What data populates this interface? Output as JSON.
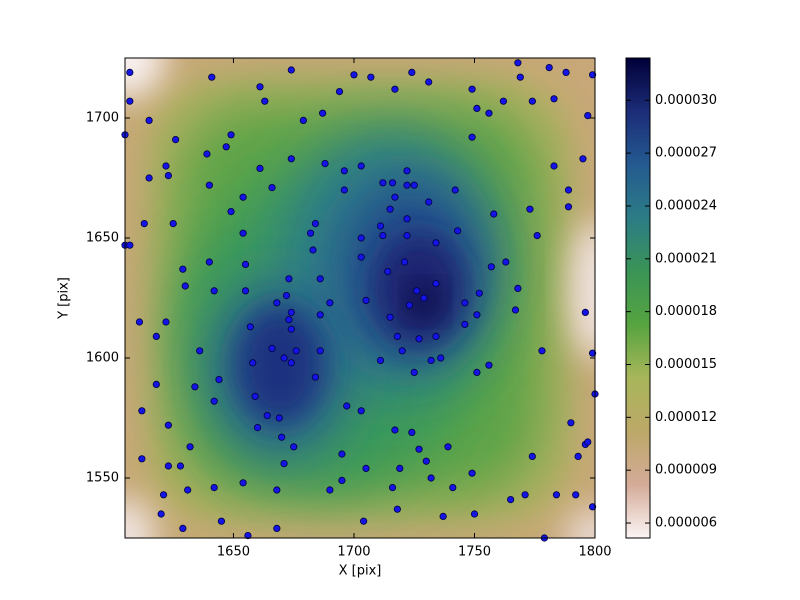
{
  "chart_data": {
    "type": "scatter",
    "xlabel": "X [pix]",
    "ylabel": "Y [pix]",
    "xlim": [
      1605,
      1800
    ],
    "ylim": [
      1525,
      1725
    ],
    "xticks": [
      1650,
      1700,
      1750,
      1800
    ],
    "yticks": [
      1550,
      1600,
      1650,
      1700
    ],
    "color": "#1414e6",
    "x": [
      1607,
      1607,
      1615,
      1626,
      1641,
      1661,
      1663,
      1674,
      1679,
      1687,
      1700,
      1694,
      1707,
      1717,
      1724,
      1731,
      1749,
      1751,
      1756,
      1762,
      1768,
      1769,
      1774,
      1783,
      1781,
      1788,
      1797,
      1799,
      1795,
      1789,
      1789,
      1783,
      1773,
      1776,
      1763,
      1768,
      1767,
      1757,
      1758,
      1749,
      1742,
      1743,
      1734,
      1731,
      1725,
      1722,
      1716,
      1712,
      1717,
      1722,
      1715,
      1722,
      1722,
      1712,
      1703,
      1703,
      1714,
      1721,
      1726,
      1734,
      1729,
      1723,
      1715,
      1718,
      1720,
      1727,
      1734,
      1736,
      1732,
      1725,
      1711,
      1705,
      1696,
      1696,
      1703,
      1711,
      1684,
      1682,
      1688,
      1674,
      1661,
      1654,
      1654,
      1649,
      1640,
      1639,
      1647,
      1649,
      1666,
      1683,
      1686,
      1690,
      1686,
      1686,
      1684,
      1673,
      1674,
      1673,
      1672,
      1668,
      1674,
      1676,
      1674,
      1671,
      1666,
      1657,
      1658,
      1659,
      1660,
      1669,
      1664,
      1670,
      1675,
      1671,
      1668,
      1654,
      1656,
      1645,
      1642,
      1631,
      1629,
      1621,
      1623,
      1628,
      1632,
      1623,
      1634,
      1642,
      1636,
      1644,
      1642,
      1640,
      1655,
      1655,
      1629,
      1630,
      1622,
      1618,
      1611,
      1618,
      1612,
      1612,
      1620,
      1668,
      1690,
      1695,
      1695,
      1704,
      1705,
      1703,
      1697,
      1717,
      1719,
      1718,
      1716,
      1732,
      1739,
      1741,
      1749,
      1750,
      1737,
      1730,
      1727,
      1724,
      1765,
      1771,
      1774,
      1784,
      1792,
      1796,
      1790,
      1793,
      1797,
      1799,
      1800,
      1779,
      1778,
      1756,
      1751,
      1751,
      1746,
      1746,
      1752,
      1799,
      1796,
      1605,
      1605,
      1607,
      1613,
      1625,
      1623,
      1622,
      1615
    ],
    "values": [
      1719,
      1707,
      1699,
      1691,
      1717,
      1713,
      1707,
      1720,
      1699,
      1702,
      1718,
      1711,
      1717,
      1712,
      1719,
      1715,
      1712,
      1704,
      1702,
      1707,
      1723,
      1717,
      1707,
      1708,
      1721,
      1719,
      1701,
      1718,
      1683,
      1663,
      1670,
      1680,
      1662,
      1651,
      1640,
      1629,
      1620,
      1638,
      1660,
      1692,
      1670,
      1653,
      1648,
      1665,
      1672,
      1672,
      1673,
      1673,
      1667,
      1678,
      1662,
      1658,
      1651,
      1651,
      1650,
      1642,
      1636,
      1640,
      1628,
      1631,
      1625,
      1622,
      1617,
      1609,
      1603,
      1608,
      1609,
      1600,
      1599,
      1594,
      1599,
      1624,
      1670,
      1678,
      1680,
      1655,
      1656,
      1652,
      1681,
      1683,
      1679,
      1667,
      1652,
      1661,
      1672,
      1685,
      1688,
      1693,
      1671,
      1645,
      1633,
      1623,
      1618,
      1603,
      1592,
      1633,
      1619,
      1616,
      1626,
      1623,
      1612,
      1603,
      1598,
      1600,
      1604,
      1613,
      1598,
      1584,
      1571,
      1575,
      1576,
      1567,
      1563,
      1556,
      1545,
      1548,
      1526,
      1532,
      1546,
      1545,
      1529,
      1543,
      1555,
      1555,
      1563,
      1572,
      1588,
      1582,
      1603,
      1591,
      1628,
      1640,
      1628,
      1639,
      1637,
      1630,
      1615,
      1609,
      1615,
      1589,
      1578,
      1558,
      1535,
      1529,
      1545,
      1549,
      1560,
      1532,
      1554,
      1578,
      1580,
      1570,
      1554,
      1537,
      1546,
      1550,
      1563,
      1546,
      1552,
      1535,
      1534,
      1557,
      1562,
      1569,
      1541,
      1543,
      1559,
      1543,
      1543,
      1564,
      1573,
      1559,
      1565,
      1538,
      1585,
      1525,
      1603,
      1597,
      1594,
      1618,
      1623,
      1614,
      1627,
      1602,
      1619,
      1693,
      1647,
      1647,
      1656,
      1656,
      1676,
      1680,
      1675
    ],
    "colorbar": {
      "lim": [
        5.15e-06,
        3.24e-05
      ],
      "ticks": [
        {
          "value": 6e-06,
          "label": "0.000006"
        },
        {
          "value": 9e-06,
          "label": "0.000009"
        },
        {
          "value": 1.2e-05,
          "label": "0.000012"
        },
        {
          "value": 1.5e-05,
          "label": "0.000015"
        },
        {
          "value": 1.8e-05,
          "label": "0.000018"
        },
        {
          "value": 2.1e-05,
          "label": "0.000021"
        },
        {
          "value": 2.4e-05,
          "label": "0.000024"
        },
        {
          "value": 2.7e-05,
          "label": "0.000027"
        },
        {
          "value": 3e-05,
          "label": "0.000030"
        }
      ],
      "colormap": [
        "#fbf5f5",
        "#d4ab98",
        "#bca868",
        "#a8b65a",
        "#56a440",
        "#3a9456",
        "#2c7c86",
        "#245a90",
        "#1c2c78",
        "#000038"
      ]
    }
  }
}
